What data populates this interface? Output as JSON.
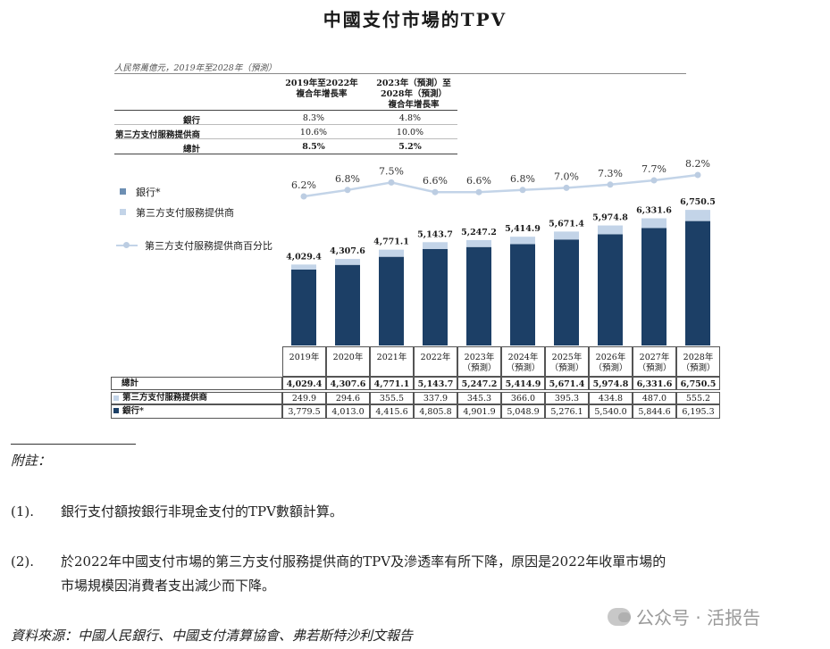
{
  "title": "中國支付市場的TPV",
  "unit_note": "人民幣萬億元，2019年至2028年（預測）",
  "cagr": {
    "headers": [
      "2019年至2022年\n複合年增長率",
      "2023年（預測）至\n2028年（預測）\n複合年增長率"
    ],
    "rows": [
      {
        "label": "銀行",
        "v1": "8.3%",
        "v2": "4.8%"
      },
      {
        "label": "第三方支付服務提供商",
        "v1": "10.6%",
        "v2": "10.0%"
      },
      {
        "label": "總計",
        "v1": "8.5%",
        "v2": "5.2%"
      }
    ]
  },
  "legend": {
    "bank": "銀行*",
    "tpp": "第三方支付服務提供商",
    "share": "第三方支付服務提供商百分比"
  },
  "colors": {
    "bank": "#1c3f66",
    "tpp": "#c3d4e8",
    "share_line": "#c3d4e8",
    "share_marker": "#bccde2"
  },
  "chart_data": {
    "type": "bar",
    "stacked": true,
    "categories": [
      "2019年",
      "2020年",
      "2021年",
      "2022年",
      "2023年\n（預測）",
      "2024年\n（預測）",
      "2025年\n（預測）",
      "2026年\n（預測）",
      "2027年\n（預測）",
      "2028年\n（預測）"
    ],
    "series": [
      {
        "name": "銀行*",
        "values": [
          3779.5,
          4013.0,
          4415.6,
          4805.8,
          4901.9,
          5048.9,
          5276.1,
          5540.0,
          5844.6,
          6195.3
        ]
      },
      {
        "name": "第三方支付服務提供商",
        "values": [
          249.9,
          294.6,
          355.5,
          337.9,
          345.3,
          366.0,
          395.3,
          434.8,
          487.0,
          555.2
        ]
      }
    ],
    "totals": [
      4029.4,
      4307.6,
      4771.1,
      5143.7,
      5247.2,
      5414.9,
      5671.4,
      5974.8,
      6331.6,
      6750.5
    ],
    "total_labels": [
      "4,029.4",
      "4,307.6",
      "4,771.1",
      "5,143.7",
      "5,247.2",
      "5,414.9",
      "5,671.4",
      "5,974.8",
      "6,331.6",
      "6,750.5"
    ],
    "line": {
      "name": "第三方支付服務提供商百分比",
      "values": [
        6.2,
        6.8,
        7.5,
        6.6,
        6.6,
        6.8,
        7.0,
        7.3,
        7.7,
        8.2
      ],
      "labels": [
        "6.2%",
        "6.8%",
        "7.5%",
        "6.6%",
        "6.6%",
        "6.8%",
        "7.0%",
        "7.3%",
        "7.7%",
        "8.2%"
      ]
    },
    "ylim": [
      0,
      7000
    ]
  },
  "table": {
    "rows": [
      {
        "label": "總計",
        "bold": true,
        "values": [
          "4,029.4",
          "4,307.6",
          "4,771.1",
          "5,143.7",
          "5,247.2",
          "5,414.9",
          "5,671.4",
          "5,974.8",
          "6,331.6",
          "6,750.5"
        ]
      },
      {
        "label": "第三方支付服務提供商",
        "bold": false,
        "values": [
          "249.9",
          "294.6",
          "355.5",
          "337.9",
          "345.3",
          "366.0",
          "395.3",
          "434.8",
          "487.0",
          "555.2"
        ]
      },
      {
        "label": "銀行*",
        "bold": false,
        "values": [
          "3,779.5",
          "4,013.0",
          "4,415.6",
          "4,805.8",
          "4,901.9",
          "5,048.9",
          "5,276.1",
          "5,540.0",
          "5,844.6",
          "6,195.3"
        ]
      }
    ]
  },
  "notes": {
    "heading": "附註：",
    "items": [
      {
        "num": "(1).",
        "text": "銀行支付額按銀行非現金支付的TPV數額計算。"
      },
      {
        "num": "(2).",
        "text": "於2022年中國支付市場的第三方支付服務提供商的TPV及滲透率有所下降，原因是2022年收單市場的",
        "text2": "市場規模因消費者支出減少而下降。"
      }
    ],
    "source": "資料來源：中國人民銀行、中國支付清算協會、弗若斯特沙利文報告"
  },
  "watermark": "公众号 · 活报告"
}
